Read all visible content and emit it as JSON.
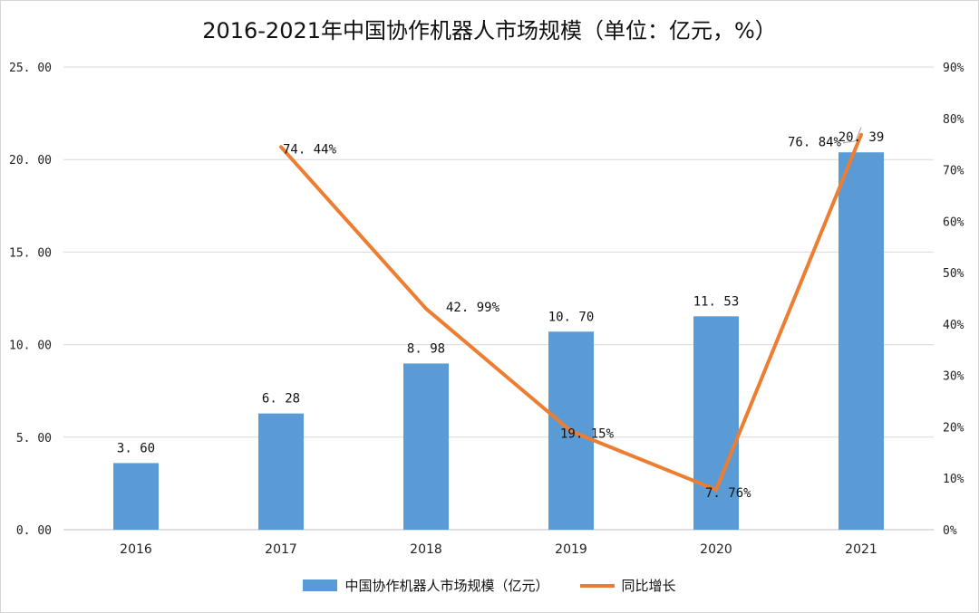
{
  "title": "2016-2021年中国协作机器人市场规模（单位：亿元，%）",
  "colors": {
    "bar": "#5b9bd5",
    "line": "#ed7d31",
    "grid": "#d9d9d9",
    "axis": "#bfbfbf"
  },
  "chart_data": {
    "type": "bar+line",
    "title": "2016-2021年中国协作机器人市场规模（单位：亿元，%）",
    "categories": [
      "2016",
      "2017",
      "2018",
      "2019",
      "2020",
      "2021"
    ],
    "y_left": {
      "min": 0,
      "max": 25,
      "step": 5,
      "tick_labels": [
        "0. 00",
        "5. 00",
        "10. 00",
        "15. 00",
        "20. 00",
        "25. 00"
      ]
    },
    "y_right": {
      "min": 0,
      "max": 90,
      "step": 10,
      "tick_labels": [
        "0%",
        "10%",
        "20%",
        "30%",
        "40%",
        "50%",
        "60%",
        "70%",
        "80%",
        "90%"
      ]
    },
    "grid": true,
    "legend_position": "bottom",
    "series": [
      {
        "name": "中国协作机器人市场规模（亿元）",
        "type": "bar",
        "axis": "left",
        "values": [
          3.6,
          6.28,
          8.98,
          10.7,
          11.53,
          20.39
        ],
        "labels": [
          "3. 60",
          "6. 28",
          "8. 98",
          "10. 70",
          "11. 53",
          "20. 39"
        ]
      },
      {
        "name": "同比增长",
        "type": "line",
        "axis": "right",
        "values": [
          null,
          74.44,
          42.99,
          19.15,
          7.76,
          76.84
        ],
        "labels": [
          null,
          "74. 44%",
          "42. 99%",
          "19. 15%",
          "7. 76%",
          "76. 84%"
        ]
      }
    ]
  }
}
